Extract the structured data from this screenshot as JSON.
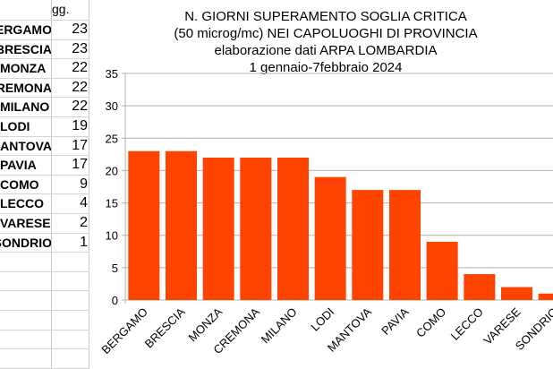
{
  "sheet": {
    "column_header": "gg.",
    "rows": [
      {
        "name": "BERGAMO",
        "value": "23"
      },
      {
        "name": "BRESCIA",
        "value": "23"
      },
      {
        "name": "MONZA",
        "value": "22"
      },
      {
        "name": "CREMONA",
        "value": "22"
      },
      {
        "name": "MILANO",
        "value": "22"
      },
      {
        "name": "LODI",
        "value": "19"
      },
      {
        "name": "MANTOVA",
        "value": "17"
      },
      {
        "name": "PAVIA",
        "value": "17"
      },
      {
        "name": "COMO",
        "value": "9"
      },
      {
        "name": "LECCO",
        "value": "4"
      },
      {
        "name": "VARESE",
        "value": "2"
      },
      {
        "name": "SONDRIO",
        "value": "1"
      }
    ]
  },
  "chart_data": {
    "type": "bar",
    "title": [
      "N. GIORNI SUPERAMENTO SOGLIA CRITICA",
      "(50 microg/mc) NEI CAPOLUOGHI DI PROVINCIA",
      "elaborazione dati ARPA LOMBARDIA",
      "1 gennaio-7febbraio 2024"
    ],
    "categories": [
      "BERGAMO",
      "BRESCIA",
      "MONZA",
      "CREMONA",
      "MILANO",
      "LODI",
      "MANTOVA",
      "PAVIA",
      "COMO",
      "LECCO",
      "VARESE",
      "SONDRIO"
    ],
    "values": [
      23,
      23,
      22,
      22,
      22,
      19,
      17,
      17,
      9,
      4,
      2,
      1
    ],
    "ylim": [
      0,
      35
    ],
    "yticks": [
      0,
      5,
      10,
      15,
      20,
      25,
      30,
      35
    ],
    "grid": true,
    "bar_color": "#ff4400",
    "grid_color": "#b3b3b3"
  }
}
